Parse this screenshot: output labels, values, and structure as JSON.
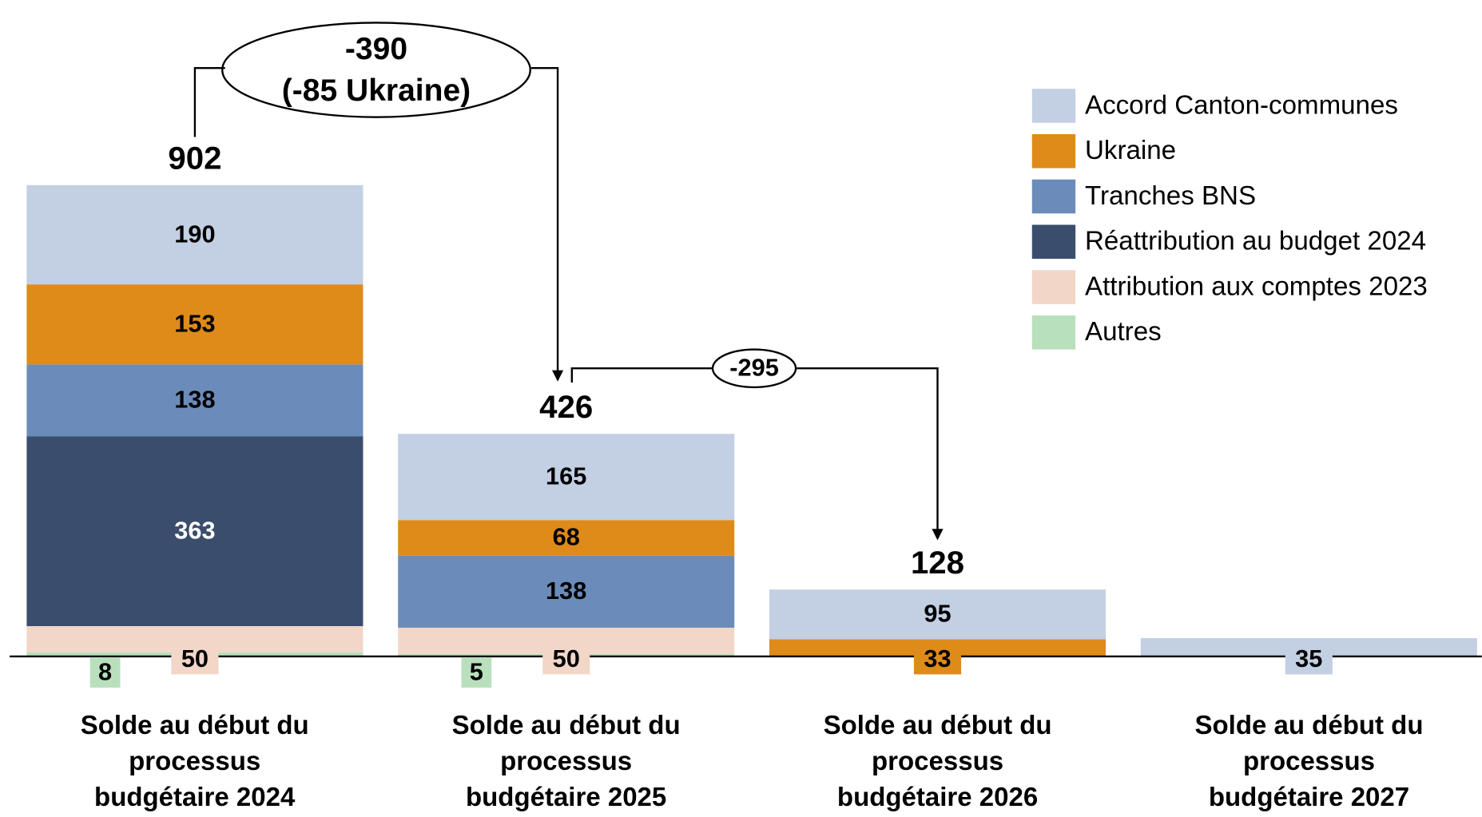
{
  "chart_data": {
    "type": "stacked-bar",
    "categories": [
      "Solde au début du processus budgétaire 2024",
      "Solde au début du processus budgétaire 2025",
      "Solde au début du processus budgétaire 2026",
      "Solde au début du processus budgétaire 2027"
    ],
    "series": [
      {
        "name": "Accord Canton-communes",
        "color": "#c3cfe2",
        "values": [
          190,
          165,
          95,
          35
        ]
      },
      {
        "name": "Ukraine",
        "color": "#de8b1a",
        "values": [
          153,
          68,
          33,
          null
        ]
      },
      {
        "name": "Tranches BNS",
        "color": "#6b8cba",
        "values": [
          138,
          138,
          null,
          null
        ]
      },
      {
        "name": "Réattribution au budget 2024",
        "color": "#3a4d6d",
        "values": [
          363,
          null,
          null,
          null
        ]
      },
      {
        "name": "Attribution aux comptes 2023",
        "color": "#f2d6c8",
        "values": [
          50,
          50,
          null,
          null
        ]
      },
      {
        "name": "Autres",
        "color": "#b9e0bd",
        "values": [
          8,
          5,
          null,
          null
        ]
      }
    ],
    "totals": [
      902,
      426,
      128,
      null
    ],
    "annotations": [
      "-390",
      "(-85 Ukraine)",
      "-295"
    ]
  }
}
